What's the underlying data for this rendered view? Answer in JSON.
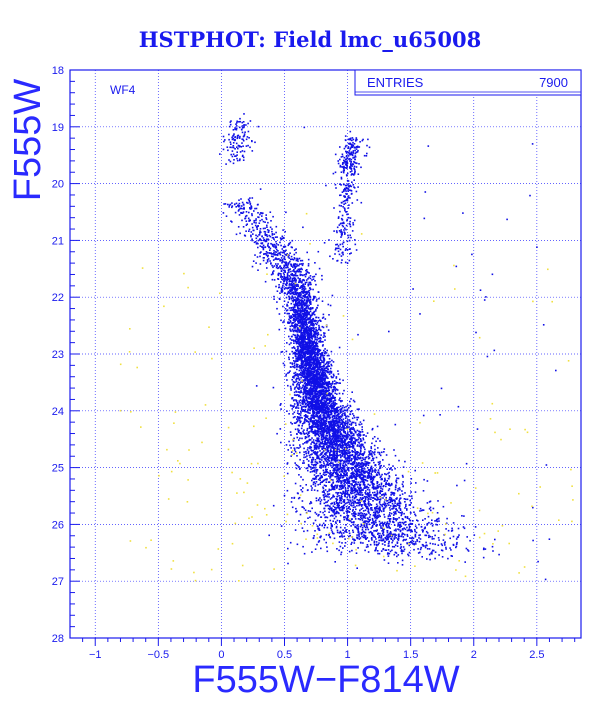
{
  "chart_data": {
    "type": "scatter",
    "title": "HSTPHOT: Field lmc_u65008",
    "field_label": "WF4",
    "xlabel": "F555W−F814W",
    "ylabel": "F555W",
    "xlim": [
      -1.2,
      2.85
    ],
    "ylim": [
      28,
      18
    ],
    "y_inverted": true,
    "xticks": [
      -1,
      -0.5,
      0,
      0.5,
      1,
      1.5,
      2,
      2.5
    ],
    "xtick_labels": [
      "−1",
      "−0.5",
      "0",
      "0.5",
      "1",
      "1.5",
      "2",
      "2.5"
    ],
    "yticks": [
      18,
      19,
      20,
      21,
      22,
      23,
      24,
      25,
      26,
      27,
      28
    ],
    "ytick_labels": [
      "18",
      "19",
      "20",
      "21",
      "22",
      "23",
      "24",
      "25",
      "26",
      "27",
      "28"
    ],
    "grid": true,
    "stats_box": {
      "label": "ENTRIES",
      "value": "7900"
    },
    "series": [
      {
        "color": "#1010e6",
        "estimated_count": 7900,
        "density_ridge": [
          {
            "mag": 20.3,
            "color": 0.15,
            "width": 0.07,
            "weight": 0.6
          },
          {
            "mag": 20.8,
            "color": 0.3,
            "width": 0.08,
            "weight": 1.0
          },
          {
            "mag": 21.3,
            "color": 0.48,
            "width": 0.09,
            "weight": 1.6
          },
          {
            "mag": 21.8,
            "color": 0.6,
            "width": 0.07,
            "weight": 2.4
          },
          {
            "mag": 22.3,
            "color": 0.64,
            "width": 0.05,
            "weight": 3.4
          },
          {
            "mag": 22.8,
            "color": 0.68,
            "width": 0.05,
            "weight": 4.4
          },
          {
            "mag": 23.3,
            "color": 0.72,
            "width": 0.06,
            "weight": 5.2
          },
          {
            "mag": 23.8,
            "color": 0.77,
            "width": 0.07,
            "weight": 5.8
          },
          {
            "mag": 24.3,
            "color": 0.85,
            "width": 0.09,
            "weight": 6.0
          },
          {
            "mag": 24.8,
            "color": 0.95,
            "width": 0.11,
            "weight": 5.8
          },
          {
            "mag": 25.3,
            "color": 1.05,
            "width": 0.13,
            "weight": 5.2
          },
          {
            "mag": 25.8,
            "color": 1.15,
            "width": 0.17,
            "weight": 4.2
          },
          {
            "mag": 26.2,
            "color": 1.3,
            "width": 0.2,
            "weight": 2.6
          },
          {
            "mag": 26.5,
            "color": 1.45,
            "width": 0.24,
            "weight": 1.2
          }
        ],
        "red_giant_branch": [
          {
            "mag": 19.2,
            "color": 1.05,
            "width": 0.06,
            "weight": 1.3
          },
          {
            "mag": 19.8,
            "color": 1.0,
            "width": 0.04,
            "weight": 0.6
          },
          {
            "mag": 20.6,
            "color": 0.98,
            "width": 0.04,
            "weight": 0.5
          },
          {
            "mag": 21.5,
            "color": 0.95,
            "width": 0.06,
            "weight": 0.5
          }
        ],
        "bright_blue_plume": [
          {
            "mag": 18.9,
            "color": 0.15,
            "width": 0.06,
            "weight": 0.25
          },
          {
            "mag": 19.6,
            "color": 0.12,
            "width": 0.05,
            "weight": 0.35
          }
        ]
      },
      {
        "color": "#f0e040",
        "estimated_count": 160,
        "distribution": {
          "xmin": -0.8,
          "xmax": 2.8,
          "ymin": 20.0,
          "ymax": 27.0,
          "concentrate_faint": true
        }
      }
    ]
  }
}
